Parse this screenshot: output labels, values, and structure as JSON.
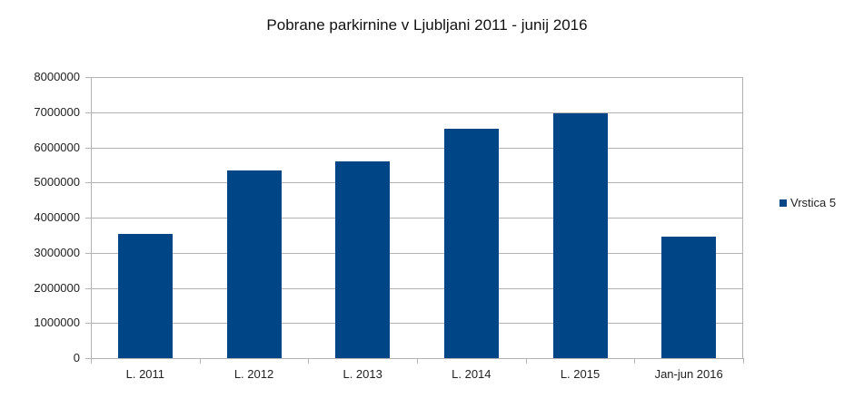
{
  "chart_data": {
    "type": "bar",
    "title": "Pobrane parkirnine v Ljubljani 2011 - junij 2016",
    "xlabel": "",
    "ylabel": "",
    "categories": [
      "L. 2011",
      "L. 2012",
      "L. 2013",
      "L. 2014",
      "L. 2015",
      "Jan-jun 2016"
    ],
    "series": [
      {
        "name": "Vrstica 5",
        "color": "#004586",
        "values": [
          3530000,
          5340000,
          5590000,
          6540000,
          6970000,
          3460000
        ]
      }
    ],
    "ylim": [
      0,
      8000000
    ],
    "yticks": [
      "0",
      "1000000",
      "2000000",
      "3000000",
      "4000000",
      "5000000",
      "6000000",
      "7000000",
      "8000000"
    ],
    "grid": true,
    "legend_position": "right"
  },
  "legend": {
    "label": "Vrstica 5"
  }
}
